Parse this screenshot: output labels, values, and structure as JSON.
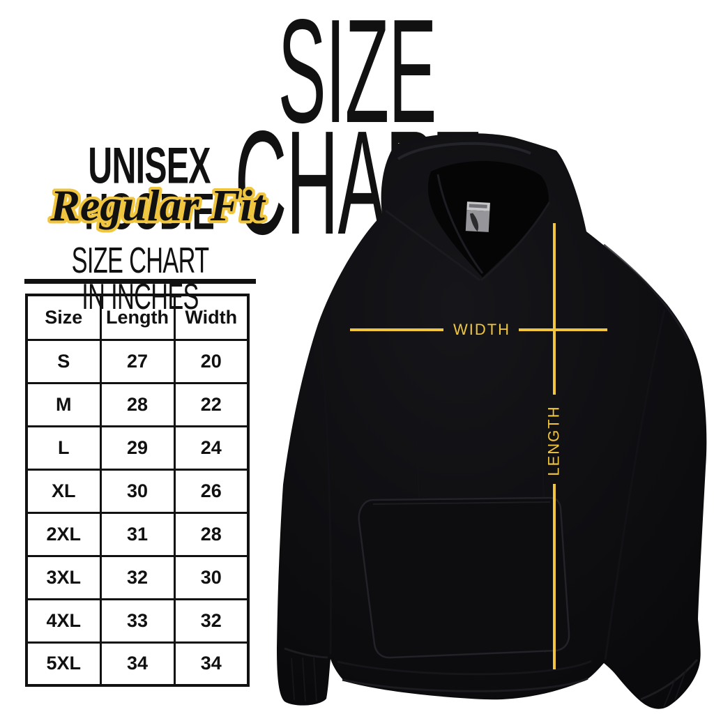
{
  "title": "SIZE CHART",
  "product": {
    "name": "UNISEX HOODIE",
    "fit": "Regular Fit"
  },
  "size_table": {
    "heading": "SIZE CHART IN INCHES"
  },
  "measurement_labels": {
    "width": "WIDTH",
    "length": "LENGTH"
  },
  "colors": {
    "accent_yellow": "#F0C53F",
    "ink": "#111111",
    "garment_black": "#0B0B0D",
    "background": "#FFFFFF"
  },
  "chart_data": {
    "type": "table",
    "title": "SIZE CHART",
    "subtitle": "UNISEX HOODIE - Regular Fit",
    "units": "inches",
    "columns": [
      "Size",
      "Length",
      "Width"
    ],
    "rows": [
      [
        "S",
        "27",
        "20"
      ],
      [
        "M",
        "28",
        "22"
      ],
      [
        "L",
        "29",
        "24"
      ],
      [
        "XL",
        "30",
        "26"
      ],
      [
        "2XL",
        "31",
        "28"
      ],
      [
        "3XL",
        "32",
        "30"
      ],
      [
        "4XL",
        "33",
        "32"
      ],
      [
        "5XL",
        "34",
        "34"
      ]
    ]
  }
}
